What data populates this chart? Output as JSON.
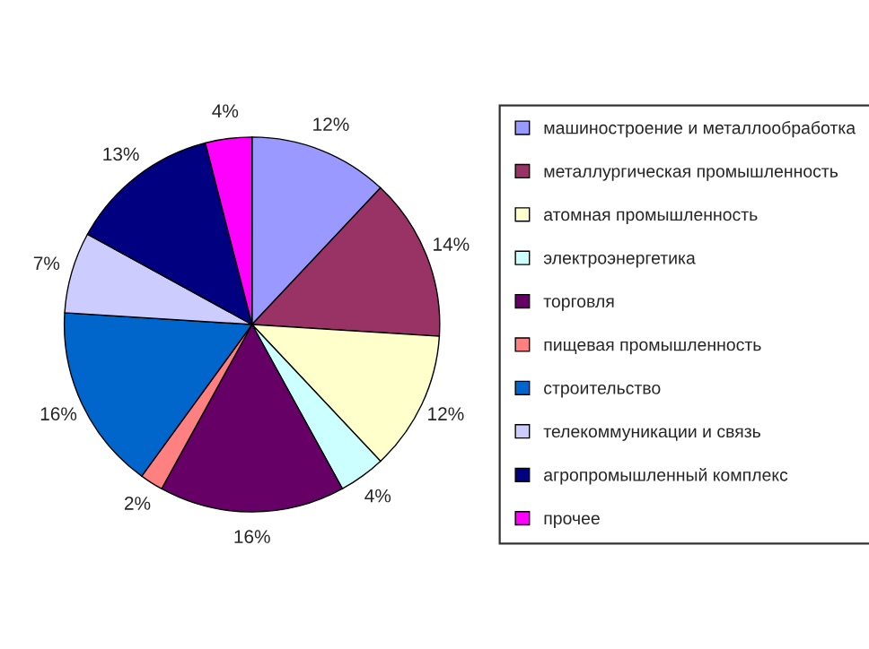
{
  "chart_data": {
    "type": "pie",
    "categories": [
      "машиностроение и металлообработка",
      "металлургическая промышленность",
      "атомная промышленность",
      "электроэнергетика",
      "торговля",
      "пищевая промышленность",
      "строительство",
      "телекоммуникации и связь",
      "агропромышленный комплекс",
      "прочее"
    ],
    "values": [
      12,
      14,
      12,
      4,
      16,
      2,
      16,
      7,
      13,
      4
    ],
    "value_labels": [
      "12%",
      "14%",
      "12%",
      "4%",
      "16%",
      "2%",
      "16%",
      "7%",
      "13%",
      "4%"
    ],
    "colors": [
      "#9999ff",
      "#993366",
      "#ffffcc",
      "#ccffff",
      "#660066",
      "#ff8080",
      "#0066cc",
      "#ccccff",
      "#000080",
      "#ff00ff"
    ],
    "legend": "right"
  }
}
